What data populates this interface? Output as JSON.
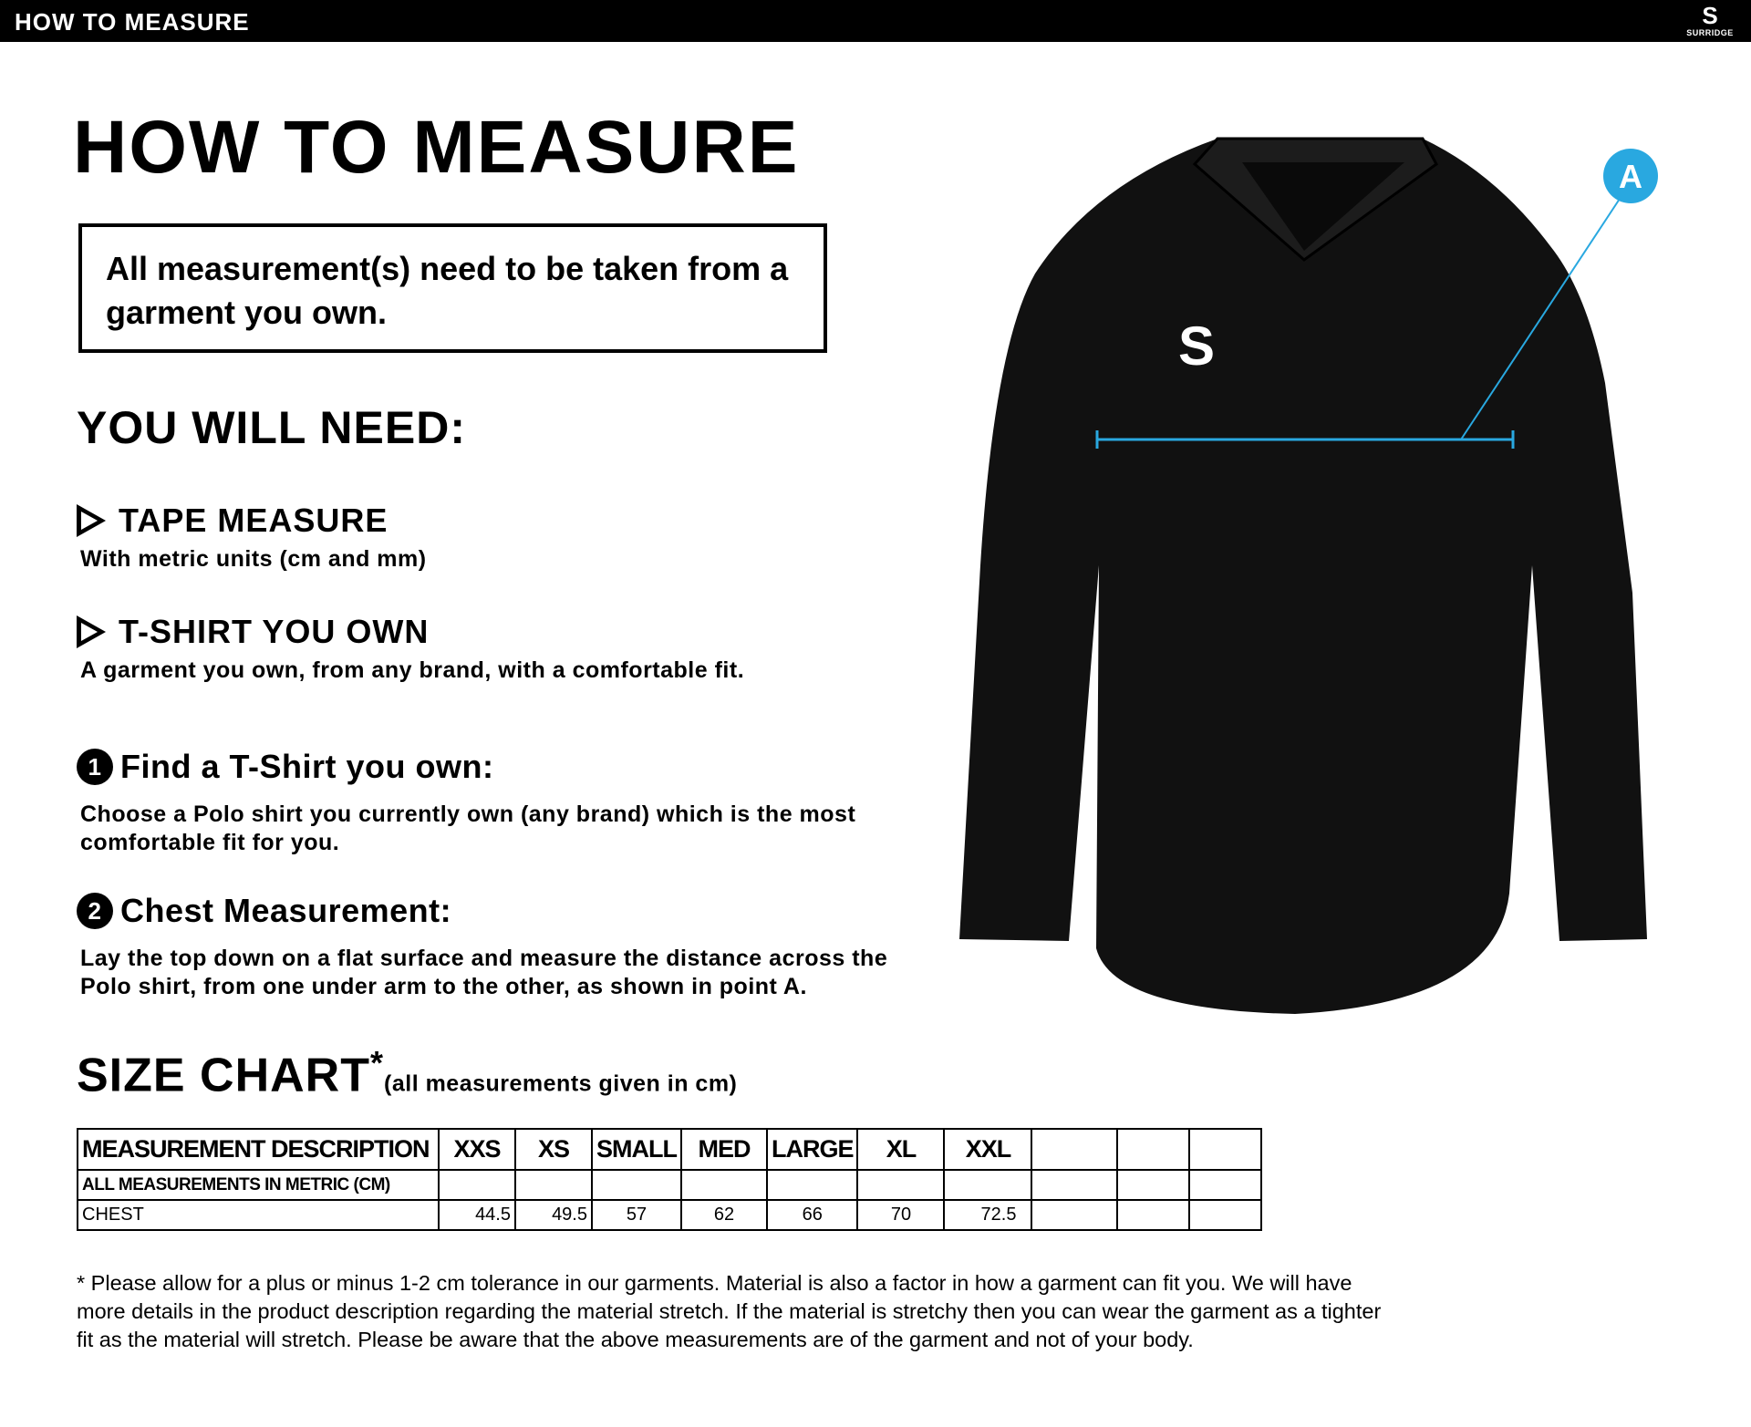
{
  "topbar": {
    "title": "HOW TO MEASURE",
    "logo": "SURRIDGE"
  },
  "title": "HOW TO MEASURE",
  "notice": "All measurement(s) need to be taken from a garment you own.",
  "need": {
    "heading": "YOU WILL NEED:",
    "items": [
      {
        "title": "TAPE MEASURE",
        "desc": "With metric units (cm and mm)"
      },
      {
        "title": "T-SHIRT YOU OWN",
        "desc": "A garment you own, from any brand, with a comfortable fit."
      }
    ]
  },
  "steps": [
    {
      "number": "1",
      "title": "Find a T-Shirt you own:",
      "desc": "Choose a Polo shirt you currently own (any brand) which is the most comfortable fit for you."
    },
    {
      "number": "2",
      "title": "Chest Measurement:",
      "desc": "Lay the top down on a flat surface and measure the distance across the Polo shirt, from one under arm to the other, as shown in point A."
    }
  ],
  "size_chart": {
    "title": "SIZE CHART",
    "asterisk": "*",
    "note": "(all measurements given in cm)",
    "header": [
      "MEASUREMENT DESCRIPTION",
      "XXS",
      "XS",
      "SMALL",
      "MED",
      "LARGE",
      "XL",
      "XXL",
      "",
      "",
      ""
    ],
    "metric_row": "ALL MEASUREMENTS IN METRIC (CM)",
    "rows": [
      {
        "label": "CHEST",
        "values": [
          "44.5",
          "49.5",
          "57",
          "62",
          "66",
          "70",
          "72.5",
          "",
          "",
          ""
        ]
      }
    ]
  },
  "footnote": "* Please allow for a plus or minus 1-2 cm tolerance in our garments. Material is also a factor in how a garment can fit you. We will have more details in the product description regarding the material stretch.  If the material is stretchy then you can wear the garment as a tighter fit as the material will stretch.  Please be aware that the above measurements are of the garment and not of your body.",
  "diagram": {
    "point_label": "A",
    "line_color": "#29a8e0",
    "garment_color": "#111111"
  }
}
